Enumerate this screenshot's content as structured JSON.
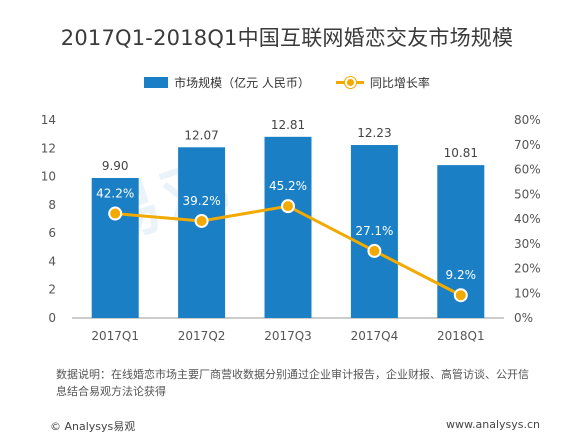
{
  "chart_data": {
    "type": "bar",
    "title": "2017Q1-2018Q1中国互联网婚恋交友市场规模",
    "categories": [
      "2017Q1",
      "2017Q2",
      "2017Q3",
      "2017Q4",
      "2018Q1"
    ],
    "series": [
      {
        "name": "市场规模（亿元 人民币）",
        "type": "bar",
        "axis": "left",
        "values": [
          9.9,
          12.07,
          12.81,
          12.23,
          10.81
        ],
        "labels": [
          "9.90",
          "12.07",
          "12.81",
          "12.23",
          "10.81"
        ],
        "color": "#1a7fc4"
      },
      {
        "name": "同比增长率",
        "type": "line",
        "axis": "right",
        "values": [
          42.2,
          39.2,
          45.2,
          27.1,
          9.2
        ],
        "labels": [
          "42.2%",
          "39.2%",
          "45.2%",
          "27.1%",
          "9.2%"
        ],
        "color": "#f2a900"
      }
    ],
    "y_left": {
      "min": 0,
      "max": 14,
      "ticks": [
        "0",
        "2",
        "4",
        "6",
        "8",
        "10",
        "12",
        "14"
      ]
    },
    "y_right": {
      "min": 0,
      "max": 80,
      "ticks": [
        "0%",
        "10%",
        "20%",
        "30%",
        "40%",
        "50%",
        "60%",
        "70%",
        "80%"
      ]
    },
    "grid": false,
    "legend": "top-center"
  },
  "note": "数据说明：在线婚恋市场主要厂商营收数据分别通过企业审计报告，企业财报、高管访谈、公开信息结合易观方法论获得",
  "footer": {
    "logo": "© Analysys易观",
    "url": "www.analysys.cn"
  },
  "watermark": "易观"
}
